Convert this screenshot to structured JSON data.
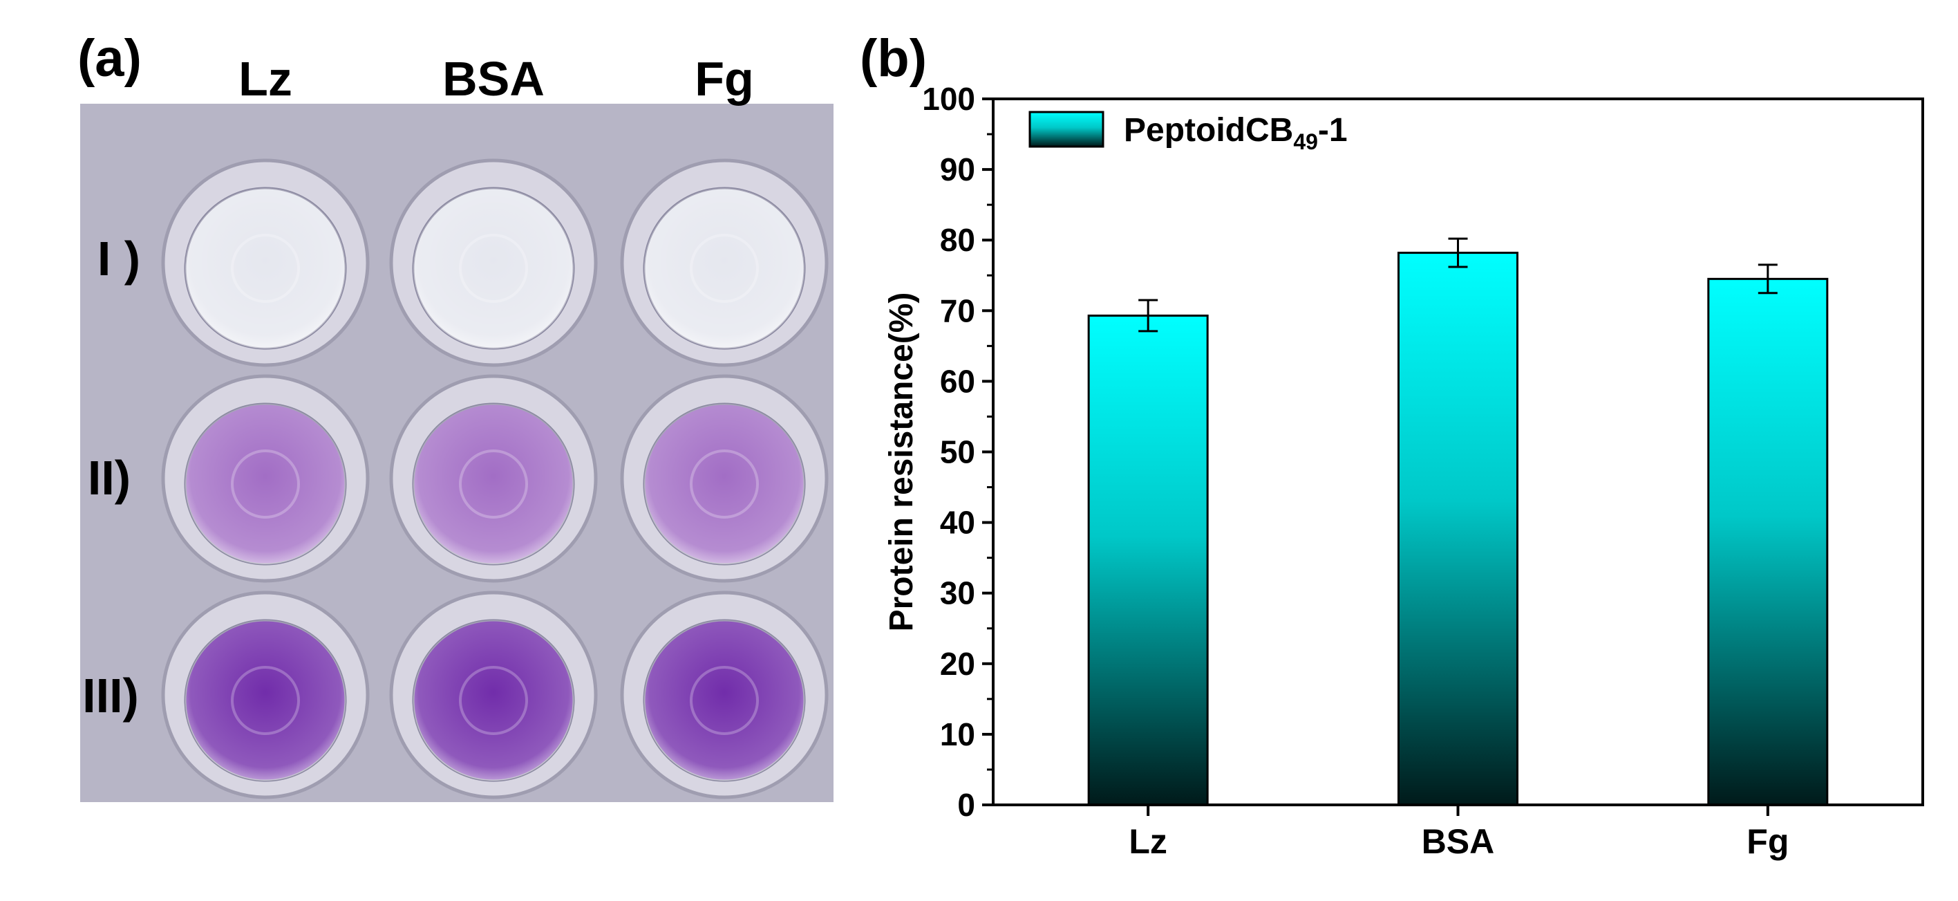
{
  "panel_a": {
    "label": "(a)",
    "columns": [
      "Lz",
      "BSA",
      "Fg"
    ],
    "rows": [
      "I )",
      "II)",
      "III)"
    ],
    "plate_color": "#b7b5c6",
    "well_colors": [
      "#e4e6ee",
      "#9d66c2",
      "#6a22a6"
    ]
  },
  "panel_b": {
    "label": "(b)"
  },
  "chart_data": {
    "type": "bar",
    "categories": [
      "Lz",
      "BSA",
      "Fg"
    ],
    "series": [
      {
        "name": "PeptoidCB49-1",
        "values": [
          69.3,
          78.2,
          74.5
        ],
        "errors": [
          2.2,
          2.0,
          2.0
        ]
      }
    ],
    "legend_text": "PeptoidCB",
    "legend_subscript": "49",
    "legend_suffix": "-1",
    "ylabel": "Protein resistance(%)",
    "xlabel": "",
    "ylim": [
      0,
      100
    ],
    "yticks": [
      0,
      10,
      20,
      30,
      40,
      50,
      60,
      70,
      80,
      90,
      100
    ],
    "grid": false,
    "legend_position": "top-left",
    "bar_gradient": [
      "#00ffff",
      "#001a1a"
    ]
  }
}
